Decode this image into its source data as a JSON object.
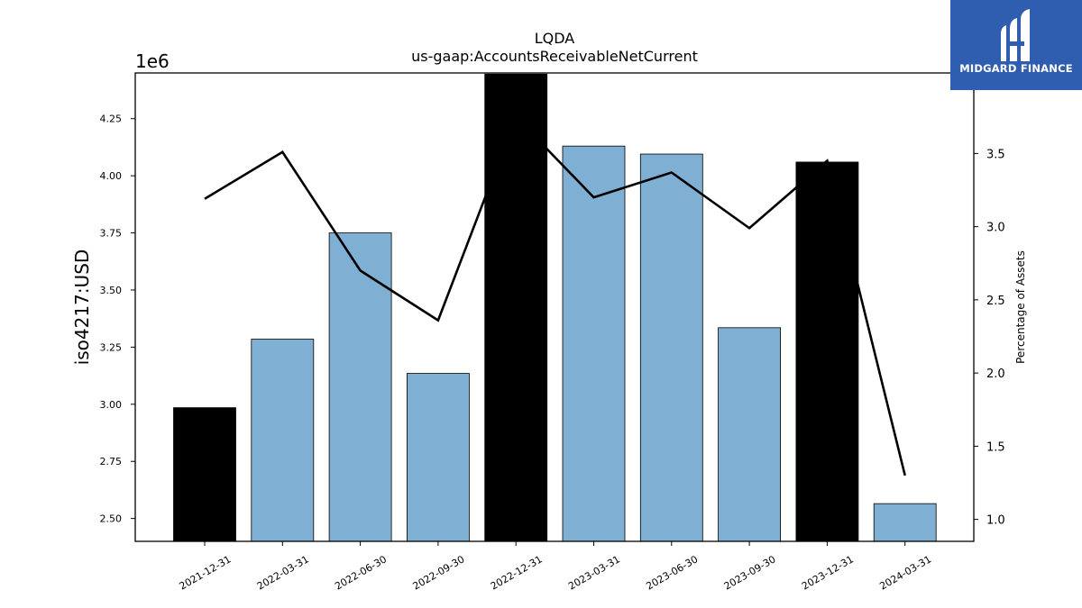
{
  "chart_data": {
    "type": "bar",
    "title": "LQDA",
    "subtitle": "us-gaap:AccountsReceivableNetCurrent",
    "ylabel": "iso4217:USD",
    "ylabel_right": "Percentage of Assets",
    "y_multiplier": "1e6",
    "categories": [
      "2021-12-31",
      "2022-03-31",
      "2022-06-30",
      "2022-09-30",
      "2022-12-31",
      "2023-03-31",
      "2023-06-30",
      "2023-09-30",
      "2023-12-31",
      "2024-03-31"
    ],
    "values": [
      2985000,
      3285000,
      3750000,
      3135000,
      4445000,
      4130000,
      4095000,
      3335000,
      4060000,
      2565000
    ],
    "bar_colors": [
      "#000000",
      "#7fafd3",
      "#7fafd3",
      "#7fafd3",
      "#000000",
      "#7fafd3",
      "#7fafd3",
      "#7fafd3",
      "#000000",
      "#7fafd3"
    ],
    "ylim": [
      2.4,
      4.45
    ],
    "yticks": [
      2.5,
      2.75,
      3.0,
      3.25,
      3.5,
      3.75,
      4.0,
      4.25
    ],
    "ytick_labels": [
      "2.50",
      "2.75",
      "3.00",
      "3.25",
      "3.50",
      "3.75",
      "4.00",
      "4.25"
    ],
    "line_series": {
      "values": [
        3.19,
        3.51,
        2.7,
        2.36,
        3.75,
        3.2,
        3.37,
        2.99,
        3.45,
        1.3
      ]
    },
    "y2lim": [
      0.85,
      4.05
    ],
    "y2ticks": [
      1.0,
      1.5,
      2.0,
      2.5,
      3.0,
      3.5
    ],
    "y2tick_labels": [
      "1.0",
      "1.5",
      "2.0",
      "2.5",
      "3.0",
      "3.5"
    ],
    "line_color": "#000000",
    "grid": false
  },
  "logo": {
    "text": "MIDGARD FINANCE",
    "background": "#2f5eb0"
  }
}
